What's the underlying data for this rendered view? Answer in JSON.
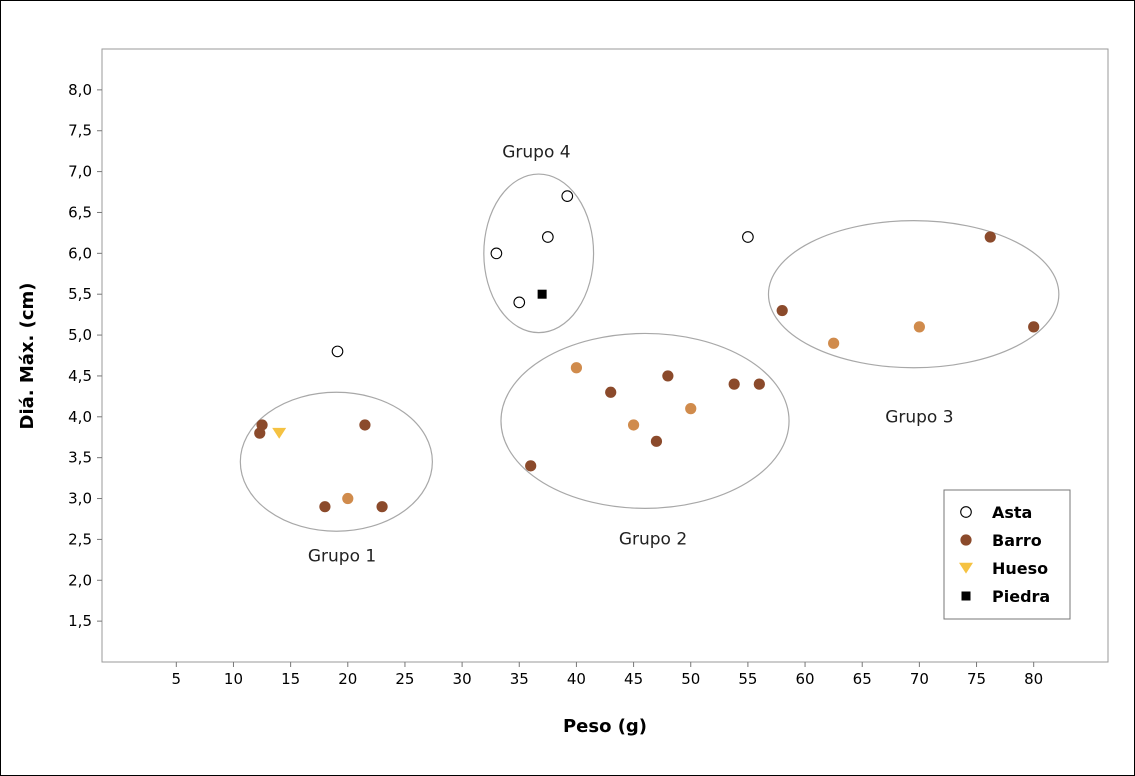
{
  "chart_data": {
    "type": "scatter",
    "title": "",
    "xlabel": "Peso (g)",
    "ylabel": "Diá. Máx. (cm)",
    "xlim": [
      -1.5,
      86.5
    ],
    "ylim": [
      1.0,
      8.5
    ],
    "x_ticks": [
      5,
      10,
      15,
      20,
      25,
      30,
      35,
      40,
      45,
      50,
      55,
      60,
      65,
      70,
      75,
      80
    ],
    "x_tick_labels": [
      "5",
      "10",
      "15",
      "20",
      "25",
      "30",
      "35",
      "40",
      "45",
      "50",
      "55",
      "60",
      "65",
      "70",
      "75",
      "80"
    ],
    "y_ticks": [
      1.5,
      2.0,
      2.5,
      3.0,
      3.5,
      4.0,
      4.5,
      5.0,
      5.5,
      6.0,
      6.5,
      7.0,
      7.5,
      8.0
    ],
    "y_tick_labels": [
      "1,5",
      "2,0",
      "2,5",
      "3,0",
      "3,5",
      "4,0",
      "4,5",
      "5,0",
      "5,5",
      "6,0",
      "6,5",
      "7,0",
      "7,5",
      "8,0"
    ],
    "grid": false,
    "legend_position": "bottom-right",
    "series": [
      {
        "name": "Asta",
        "marker": "circle-open",
        "color": "#000000",
        "points": [
          {
            "x": 19.1,
            "y": 4.8
          },
          {
            "x": 33.0,
            "y": 6.0
          },
          {
            "x": 35.0,
            "y": 5.4
          },
          {
            "x": 37.5,
            "y": 6.2
          },
          {
            "x": 39.2,
            "y": 6.7
          },
          {
            "x": 55.0,
            "y": 6.2
          }
        ]
      },
      {
        "name": "Barro",
        "marker": "circle",
        "color": "#8B4A2B",
        "points": [
          {
            "x": 12.3,
            "y": 3.8
          },
          {
            "x": 12.5,
            "y": 3.9
          },
          {
            "x": 18.0,
            "y": 2.9
          },
          {
            "x": 21.5,
            "y": 3.9
          },
          {
            "x": 23.0,
            "y": 2.9
          },
          {
            "x": 36.0,
            "y": 3.4
          },
          {
            "x": 43.0,
            "y": 4.3
          },
          {
            "x": 47.0,
            "y": 3.7
          },
          {
            "x": 48.0,
            "y": 4.5
          },
          {
            "x": 53.8,
            "y": 4.4
          },
          {
            "x": 56.0,
            "y": 4.4
          },
          {
            "x": 58.0,
            "y": 5.3
          },
          {
            "x": 76.2,
            "y": 6.2
          },
          {
            "x": 80.0,
            "y": 5.1
          }
        ]
      },
      {
        "marker": "circle",
        "color": "#D08B4C",
        "points": [
          {
            "x": 20.0,
            "y": 3.0
          },
          {
            "x": 40.0,
            "y": 4.6
          },
          {
            "x": 45.0,
            "y": 3.9
          },
          {
            "x": 50.0,
            "y": 4.1
          },
          {
            "x": 62.5,
            "y": 4.9
          },
          {
            "x": 70.0,
            "y": 5.1
          }
        ]
      },
      {
        "name": "Hueso",
        "marker": "triangle-down",
        "color": "#F5C242",
        "points": [
          {
            "x": 14.0,
            "y": 3.8
          }
        ]
      },
      {
        "name": "Piedra",
        "marker": "square",
        "color": "#000000",
        "points": [
          {
            "x": 37.0,
            "y": 5.5
          }
        ]
      }
    ],
    "groups": [
      {
        "label": "Grupo 1",
        "cx": 19.0,
        "cy": 3.45,
        "rx": 8.4,
        "ry": 0.85,
        "label_x": 19.5,
        "label_y": 2.23
      },
      {
        "label": "Grupo 2",
        "cx": 46.0,
        "cy": 3.95,
        "rx": 12.6,
        "ry": 1.07,
        "label_x": 46.7,
        "label_y": 2.44
      },
      {
        "label": "Grupo 3",
        "cx": 69.5,
        "cy": 5.5,
        "rx": 12.7,
        "ry": 0.9,
        "label_x": 70.0,
        "label_y": 3.93
      },
      {
        "label": "Grupo 4",
        "cx": 36.7,
        "cy": 6.0,
        "rx": 4.8,
        "ry": 0.97,
        "label_x": 36.5,
        "label_y": 7.17
      }
    ],
    "legend": [
      {
        "label": "Asta",
        "marker": "circle-open",
        "color": "#000000"
      },
      {
        "label": "Barro",
        "marker": "circle",
        "color": "#8B4A2B"
      },
      {
        "label": "Hueso",
        "marker": "triangle-down",
        "color": "#F5C242"
      },
      {
        "label": "Piedra",
        "marker": "square",
        "color": "#000000"
      }
    ]
  }
}
